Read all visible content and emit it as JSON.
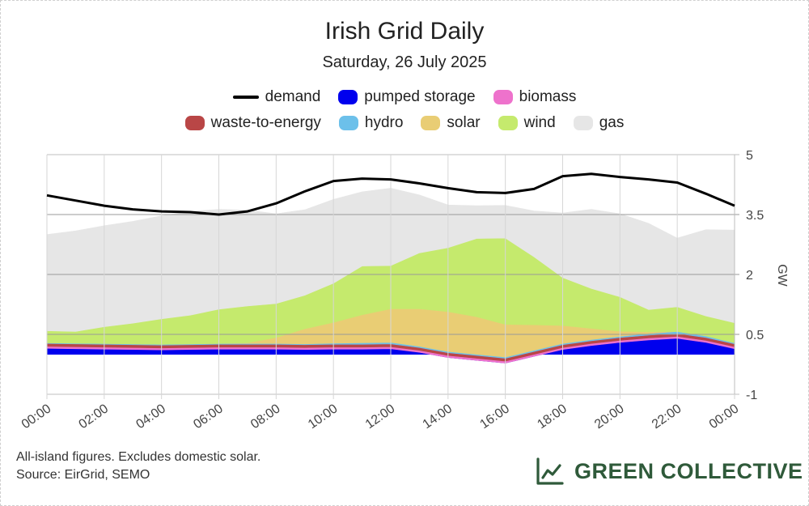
{
  "chart_data": {
    "type": "area",
    "title": "Irish Grid Daily",
    "subtitle": "Saturday, 26 July 2025",
    "ylabel": "GW",
    "ylim": [
      -1,
      5
    ],
    "yticks": [
      -1,
      0.5,
      2,
      3.5,
      5
    ],
    "xticks": [
      "00:00",
      "02:00",
      "04:00",
      "06:00",
      "08:00",
      "10:00",
      "12:00",
      "14:00",
      "16:00",
      "18:00",
      "20:00",
      "22:00",
      "00:00"
    ],
    "x_hours": [
      0,
      1,
      2,
      3,
      4,
      5,
      6,
      7,
      8,
      9,
      10,
      11,
      12,
      13,
      14,
      15,
      16,
      17,
      18,
      19,
      20,
      21,
      22,
      23,
      24
    ],
    "demand_series": {
      "name": "demand",
      "color": "#000000",
      "values": [
        3.98,
        3.85,
        3.72,
        3.63,
        3.58,
        3.56,
        3.5,
        3.58,
        3.78,
        4.08,
        4.34,
        4.4,
        4.38,
        4.28,
        4.16,
        4.06,
        4.04,
        4.14,
        4.46,
        4.52,
        4.44,
        4.38,
        4.3,
        4.02,
        3.72
      ]
    },
    "series": [
      {
        "name": "pumped storage",
        "color": "#0000ee",
        "values": [
          0.15,
          0.14,
          0.13,
          0.12,
          0.11,
          0.12,
          0.13,
          0.13,
          0.13,
          0.12,
          0.13,
          0.13,
          0.14,
          0.05,
          -0.08,
          -0.15,
          -0.22,
          -0.05,
          0.12,
          0.22,
          0.3,
          0.36,
          0.4,
          0.3,
          0.14
        ]
      },
      {
        "name": "biomass",
        "color": "#ee72cc",
        "values": [
          0.05,
          0.05,
          0.05,
          0.05,
          0.05,
          0.05,
          0.05,
          0.05,
          0.05,
          0.05,
          0.05,
          0.05,
          0.05,
          0.05,
          0.05,
          0.05,
          0.05,
          0.05,
          0.05,
          0.05,
          0.05,
          0.05,
          0.05,
          0.05,
          0.05
        ]
      },
      {
        "name": "waste-to-energy",
        "color": "#b94646",
        "values": [
          0.07,
          0.07,
          0.07,
          0.07,
          0.07,
          0.07,
          0.07,
          0.07,
          0.07,
          0.07,
          0.07,
          0.07,
          0.07,
          0.07,
          0.07,
          0.07,
          0.07,
          0.07,
          0.07,
          0.07,
          0.07,
          0.07,
          0.07,
          0.07,
          0.07
        ]
      },
      {
        "name": "hydro",
        "color": "#6cc0ea",
        "values": [
          0.02,
          0.02,
          0.02,
          0.02,
          0.02,
          0.02,
          0.02,
          0.02,
          0.02,
          0.02,
          0.03,
          0.04,
          0.04,
          0.03,
          0.03,
          0.03,
          0.03,
          0.03,
          0.03,
          0.03,
          0.03,
          0.04,
          0.05,
          0.04,
          0.03
        ]
      },
      {
        "name": "solar",
        "color": "#e9cd74",
        "values": [
          0.0,
          0.0,
          0.0,
          0.0,
          0.0,
          0.0,
          0.0,
          0.02,
          0.15,
          0.38,
          0.52,
          0.7,
          0.84,
          0.94,
          1.0,
          0.94,
          0.82,
          0.64,
          0.45,
          0.28,
          0.13,
          0.04,
          0.0,
          0.0,
          0.0
        ]
      },
      {
        "name": "wind",
        "color": "#c5ea6d",
        "values": [
          0.3,
          0.29,
          0.42,
          0.52,
          0.64,
          0.72,
          0.86,
          0.92,
          0.85,
          0.84,
          0.98,
          1.22,
          1.08,
          1.4,
          1.6,
          1.96,
          2.16,
          1.7,
          1.2,
          1.0,
          0.86,
          0.56,
          0.62,
          0.5,
          0.5
        ]
      },
      {
        "name": "gas",
        "color": "#e6e6e6",
        "values": [
          2.41,
          2.52,
          2.53,
          2.55,
          2.58,
          2.6,
          2.5,
          2.4,
          2.25,
          2.14,
          2.1,
          1.86,
          1.94,
          1.45,
          1.07,
          0.82,
          0.82,
          1.15,
          1.62,
          1.98,
          2.08,
          2.16,
          1.72,
          2.16,
          2.32
        ]
      }
    ]
  },
  "footer": {
    "note_line1": "All-island figures. Excludes domestic solar.",
    "note_line2": "Source: EirGrid, SEMO",
    "brand": "GREEN COLLECTIVE",
    "brand_color": "#2f5a3a"
  }
}
